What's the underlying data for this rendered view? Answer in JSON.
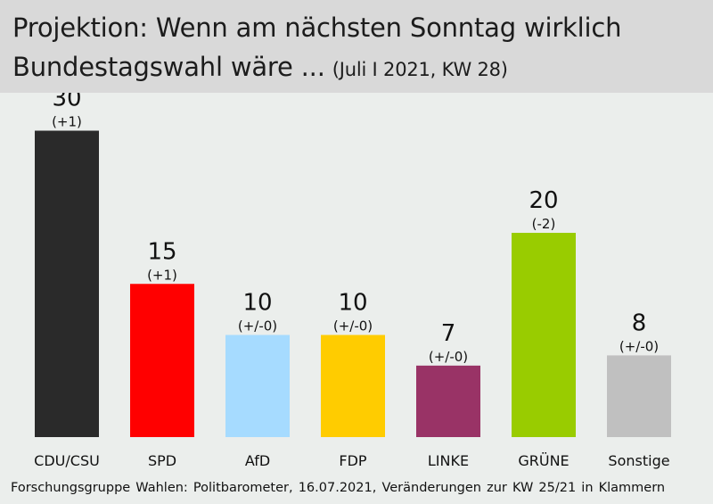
{
  "header": {
    "title_line1": "Projektion: Wenn am nächsten Sonntag wirklich",
    "title_line2": "Bundestagswahl wäre ...",
    "subtitle": "(Juli I 2021, KW 28)"
  },
  "footer": {
    "source": "Forschungsgruppe Wahlen: Politbarometer, 16.07.2021, Veränderungen zur KW 25/21 in Klammern"
  },
  "chart_data": {
    "type": "bar",
    "title": "Projektion: Wenn am nächsten Sonntag wirklich Bundestagswahl wäre ...",
    "subtitle": "(Juli I 2021, KW 28)",
    "categories": [
      "CDU/CSU",
      "SPD",
      "AfD",
      "FDP",
      "LINKE",
      "GRÜNE",
      "Sonstige"
    ],
    "values": [
      30,
      15,
      10,
      10,
      7,
      20,
      8
    ],
    "changes": [
      "(+1)",
      "(+1)",
      "(+/-0)",
      "(+/-0)",
      "(+/-0)",
      "(-2)",
      "(+/-0)"
    ],
    "colors": [
      "#2a2a2a",
      "#ff0000",
      "#a6dbff",
      "#ffcc00",
      "#993366",
      "#99cc00",
      "#c0c0c0"
    ],
    "ylim": [
      0,
      35
    ],
    "grid": false,
    "legend": "none"
  }
}
